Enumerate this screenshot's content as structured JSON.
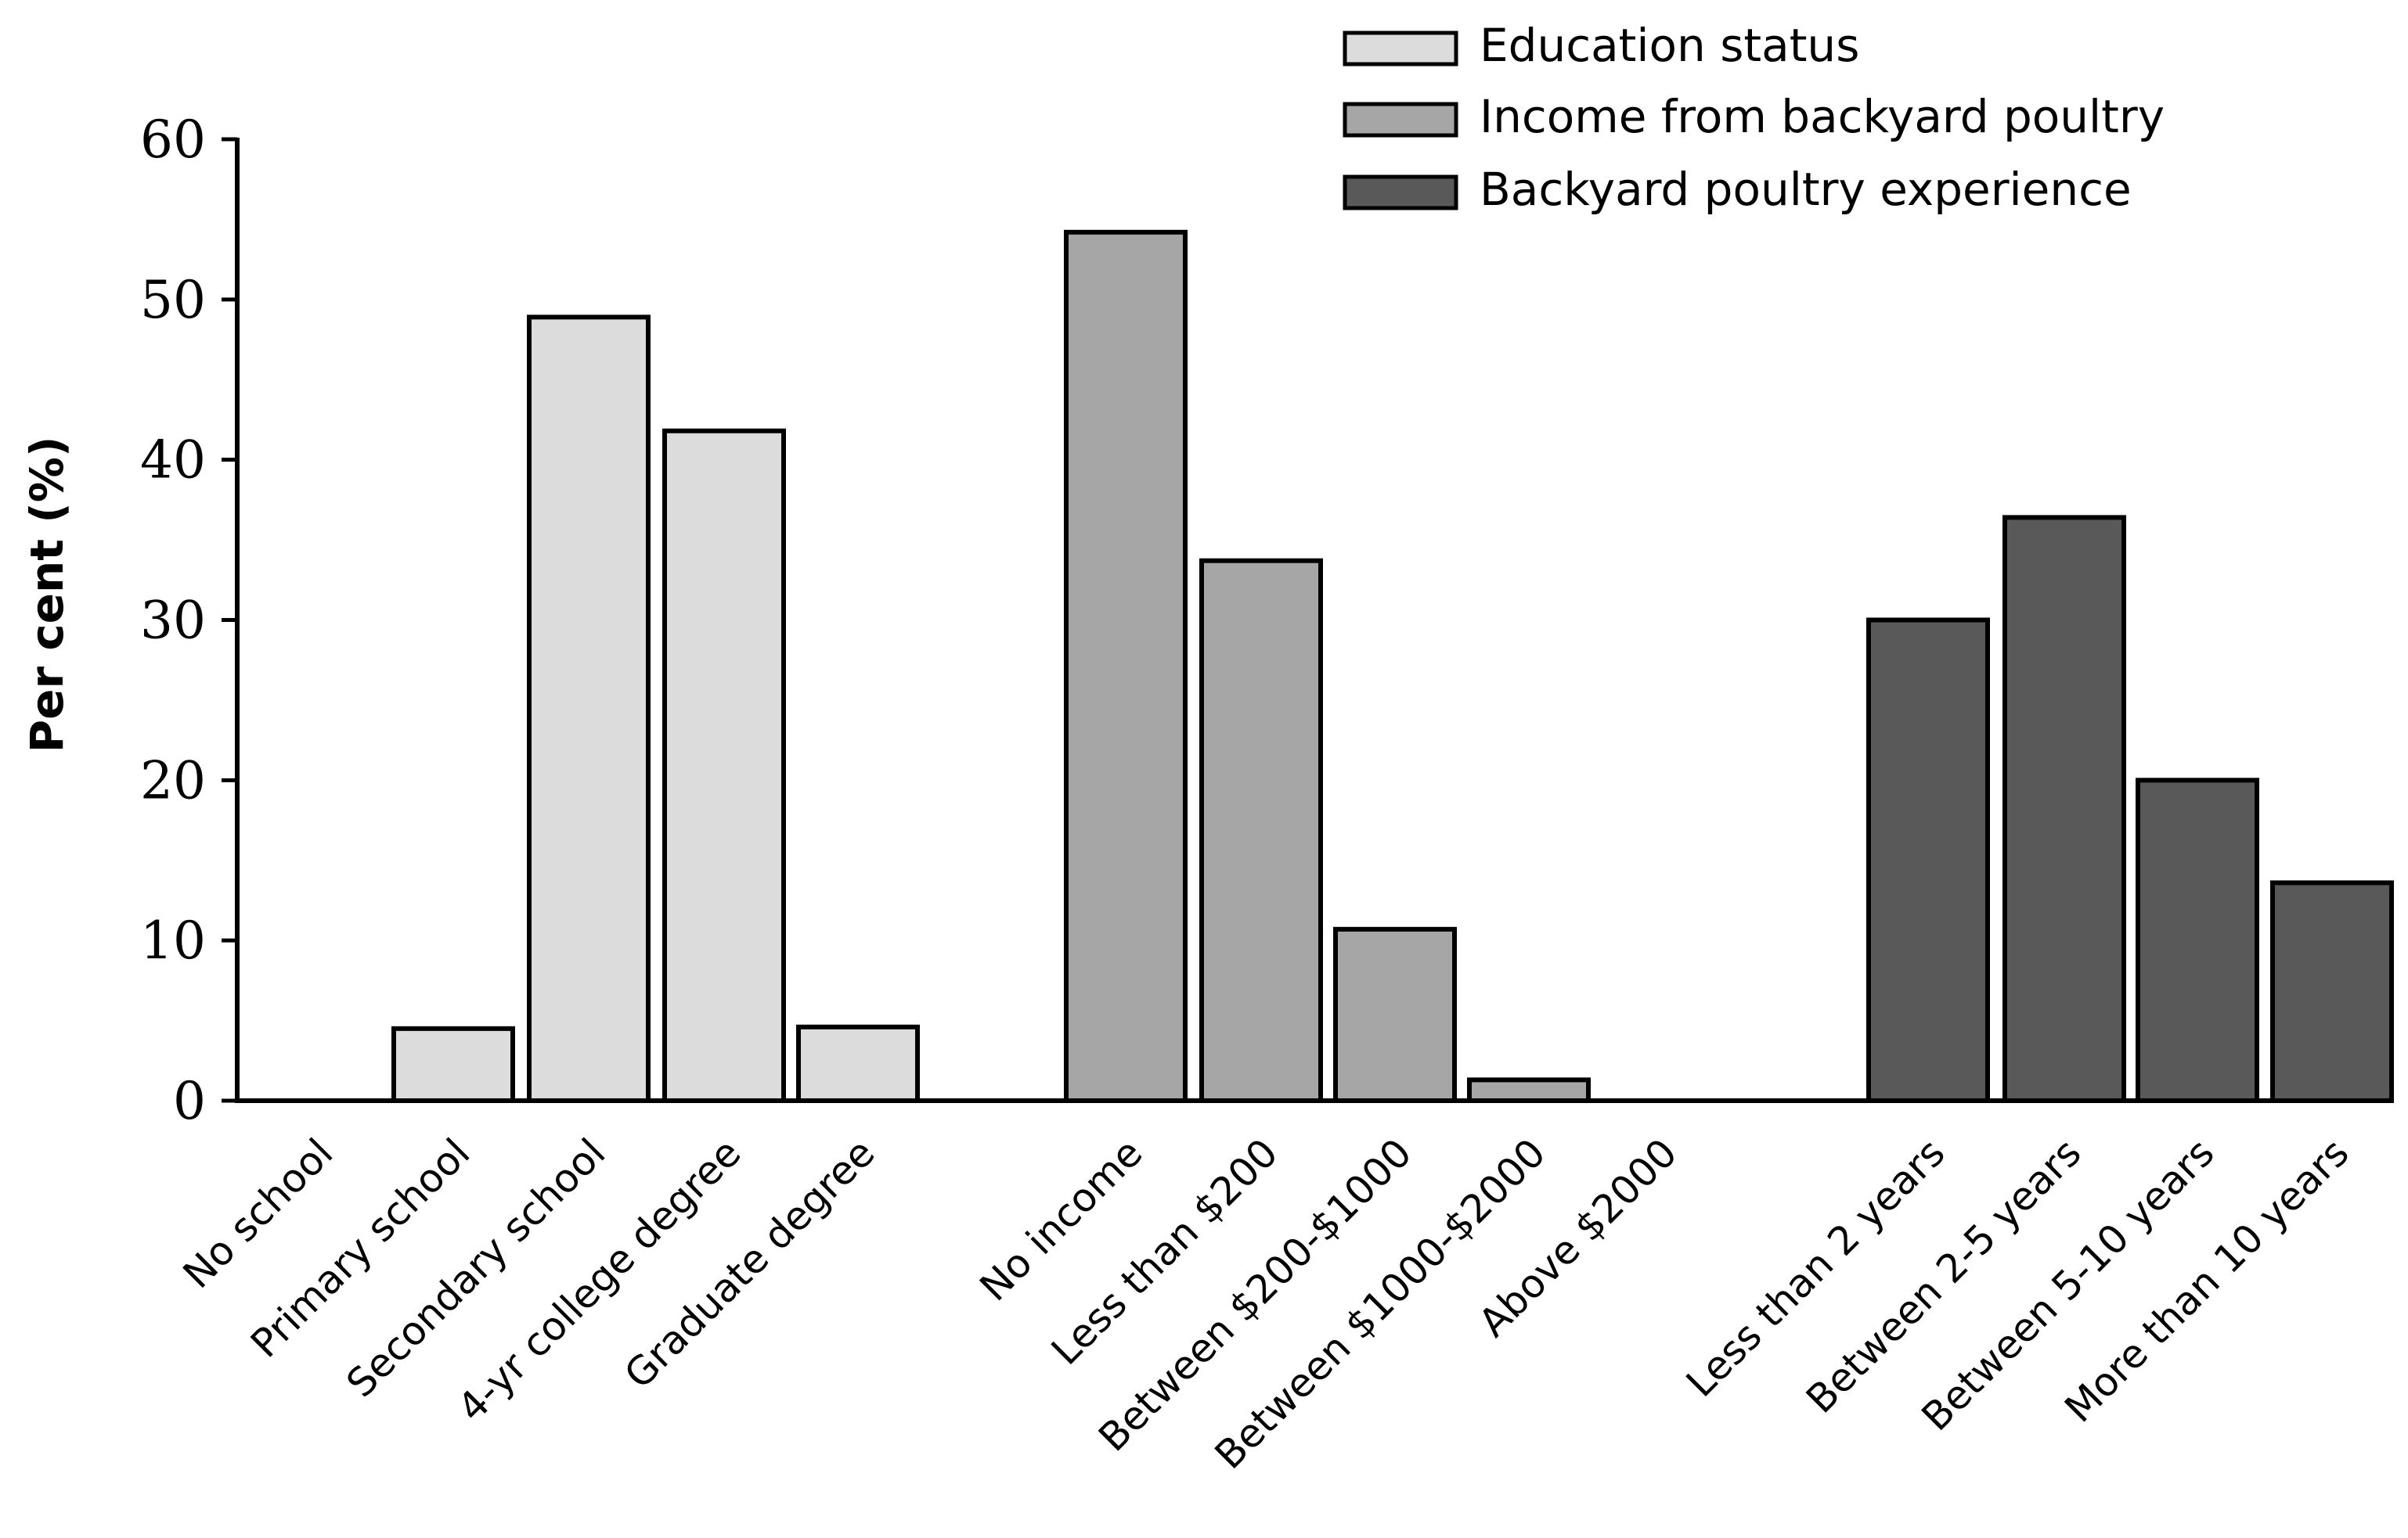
{
  "chart_data": {
    "type": "bar",
    "title": "",
    "xlabel": "",
    "ylabel": "Per cent (%)",
    "ylim": [
      0,
      60
    ],
    "yticks": [
      0,
      10,
      20,
      30,
      40,
      50,
      60
    ],
    "grid": false,
    "legend_position": "top-right",
    "series": [
      {
        "name": "Education status",
        "color": "#dcdcdc",
        "categories": [
          "No school",
          "Primary school",
          "Secondary school",
          "4-yr college degree",
          "Graduate degree"
        ],
        "values": [
          0,
          4.5,
          48.9,
          41.8,
          4.6
        ]
      },
      {
        "name": "Income from backyard poultry",
        "color": "#a6a6a6",
        "categories": [
          "No income",
          "Less than $200",
          "Between $200-$1000",
          "Between $1000-$2000",
          "Above $2000"
        ],
        "values": [
          54.2,
          33.7,
          10.7,
          1.3,
          0
        ]
      },
      {
        "name": "Backyard poultry experience",
        "color": "#595959",
        "categories": [
          "Less than 2 years",
          "Between 2-5 years",
          "Between 5-10 years",
          "More than 10 years"
        ],
        "values": [
          30.0,
          36.4,
          20.0,
          13.6
        ]
      }
    ]
  }
}
